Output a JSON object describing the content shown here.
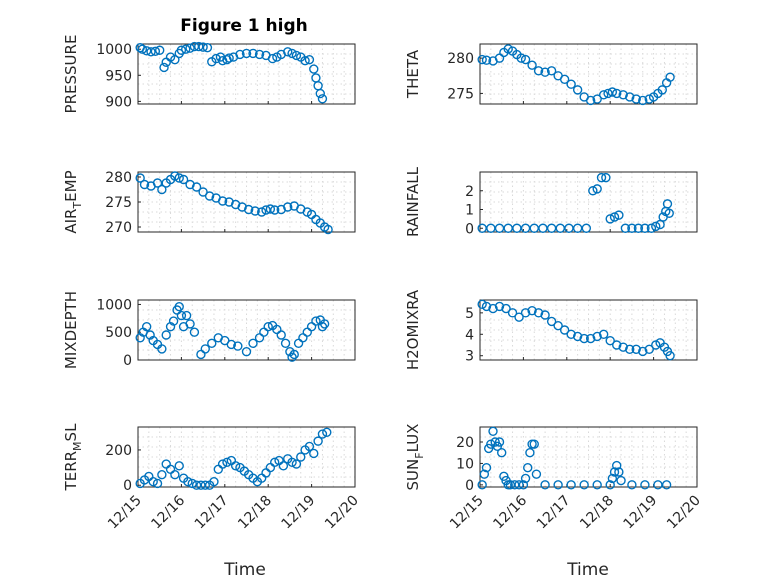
{
  "figure": {
    "title": "Figure 1 high",
    "xlabel": "Time",
    "color": "#0072BD"
  },
  "chart_data": [
    {
      "id": "pressure",
      "type": "scatter",
      "title": "Figure 1 high",
      "ylabel": "PRESSURE",
      "ylabel_sub": "",
      "ylim": [
        895,
        1010
      ],
      "yticks": [
        900,
        950,
        1000
      ],
      "xlim": [
        0,
        5
      ],
      "xticks": [
        "12/15",
        "12/16",
        "12/17",
        "12/18",
        "12/19",
        "12/20"
      ],
      "x": [
        0.05,
        0.1,
        0.2,
        0.3,
        0.4,
        0.5,
        0.6,
        0.65,
        0.75,
        0.85,
        0.95,
        1.0,
        1.1,
        1.2,
        1.3,
        1.4,
        1.5,
        1.6,
        1.7,
        1.8,
        1.9,
        1.95,
        2.05,
        2.1,
        2.2,
        2.35,
        2.5,
        2.65,
        2.8,
        2.95,
        3.1,
        3.2,
        3.3,
        3.45,
        3.55,
        3.65,
        3.75,
        3.85,
        3.95,
        4.05,
        4.1,
        4.15,
        4.2,
        4.25
      ],
      "y": [
        1003,
        1000,
        997,
        995,
        996,
        998,
        965,
        975,
        985,
        980,
        992,
        998,
        1000,
        1002,
        1005,
        1005,
        1004,
        1003,
        976,
        982,
        985,
        978,
        980,
        983,
        985,
        990,
        992,
        992,
        990,
        988,
        982,
        985,
        990,
        995,
        992,
        988,
        985,
        978,
        980,
        962,
        945,
        930,
        915,
        905
      ]
    },
    {
      "id": "theta",
      "type": "scatter",
      "ylabel": "THETA",
      "ylabel_sub": "",
      "ylim": [
        273.5,
        282
      ],
      "yticks": [
        275,
        280
      ],
      "xlim": [
        0,
        5
      ],
      "xticks": [
        "12/15",
        "12/16",
        "12/17",
        "12/18",
        "12/19",
        "12/20"
      ],
      "x": [
        0.05,
        0.15,
        0.3,
        0.45,
        0.55,
        0.65,
        0.75,
        0.85,
        0.95,
        1.05,
        1.2,
        1.35,
        1.5,
        1.65,
        1.8,
        1.95,
        2.1,
        2.25,
        2.4,
        2.55,
        2.7,
        2.85,
        2.95,
        3.05,
        3.15,
        3.3,
        3.45,
        3.6,
        3.75,
        3.9,
        4.0,
        4.1,
        4.2,
        4.3,
        4.38
      ],
      "y": [
        279.8,
        279.7,
        279.6,
        280.0,
        280.8,
        281.3,
        281.0,
        280.5,
        280.0,
        279.8,
        279.0,
        278.2,
        278.0,
        278.2,
        277.5,
        277.0,
        276.3,
        275.5,
        274.5,
        274.0,
        274.2,
        274.8,
        275.0,
        275.2,
        275.0,
        274.8,
        274.5,
        274.2,
        274.0,
        274.2,
        274.5,
        275.0,
        275.5,
        276.5,
        277.3
      ]
    },
    {
      "id": "airtemp",
      "type": "scatter",
      "ylabel": "AIR",
      "ylabel_sub": "T",
      "ylabel_post": "EMP",
      "ylim": [
        269,
        281
      ],
      "yticks": [
        270,
        275,
        280
      ],
      "xlim": [
        0,
        5
      ],
      "xticks": [
        "12/15",
        "12/16",
        "12/17",
        "12/18",
        "12/19",
        "12/20"
      ],
      "x": [
        0.05,
        0.15,
        0.3,
        0.45,
        0.55,
        0.65,
        0.75,
        0.85,
        0.95,
        1.05,
        1.2,
        1.35,
        1.5,
        1.65,
        1.8,
        1.95,
        2.1,
        2.25,
        2.4,
        2.55,
        2.7,
        2.85,
        2.95,
        3.05,
        3.15,
        3.3,
        3.45,
        3.6,
        3.75,
        3.9,
        4.0,
        4.1,
        4.2,
        4.3,
        4.38
      ],
      "y": [
        279.8,
        278.5,
        278.2,
        278.8,
        277.5,
        278.8,
        279.5,
        280.2,
        279.8,
        279.5,
        278.5,
        278.0,
        277.0,
        276.2,
        275.8,
        275.2,
        275.0,
        274.5,
        274.0,
        273.5,
        273.2,
        273.0,
        273.4,
        273.6,
        273.4,
        273.5,
        274.0,
        274.2,
        273.6,
        273.0,
        272.5,
        271.5,
        270.8,
        270.0,
        269.5
      ]
    },
    {
      "id": "rainfall",
      "type": "scatter",
      "ylabel": "RAINFALL",
      "ylabel_sub": "",
      "ylim": [
        -0.2,
        3.0
      ],
      "yticks": [
        0,
        1,
        2
      ],
      "xlim": [
        0,
        5
      ],
      "xticks": [
        "12/15",
        "12/16",
        "12/17",
        "12/18",
        "12/19",
        "12/20"
      ],
      "x": [
        0.05,
        0.25,
        0.45,
        0.65,
        0.85,
        1.05,
        1.25,
        1.45,
        1.65,
        1.85,
        2.05,
        2.25,
        2.45,
        2.6,
        2.7,
        2.8,
        2.9,
        3.0,
        3.1,
        3.2,
        3.35,
        3.5,
        3.65,
        3.8,
        3.95,
        4.05,
        4.15,
        4.22,
        4.28,
        4.32,
        4.36
      ],
      "y": [
        0,
        0,
        0,
        0,
        0,
        0,
        0,
        0,
        0,
        0,
        0,
        0,
        0,
        2.0,
        2.1,
        2.7,
        2.7,
        0.5,
        0.6,
        0.7,
        0,
        0,
        0,
        0,
        0,
        0.1,
        0.2,
        0.6,
        0.9,
        1.3,
        0.8
      ]
    },
    {
      "id": "mixdepth",
      "type": "scatter",
      "ylabel": "MIXDEPTH",
      "ylabel_sub": "",
      "ylim": [
        0,
        1080
      ],
      "yticks": [
        0,
        500,
        1000
      ],
      "xlim": [
        0,
        5
      ],
      "xticks": [
        "12/15",
        "12/16",
        "12/17",
        "12/18",
        "12/19",
        "12/20"
      ],
      "x": [
        0.05,
        0.12,
        0.2,
        0.28,
        0.35,
        0.45,
        0.55,
        0.65,
        0.75,
        0.82,
        0.9,
        0.95,
        1.0,
        1.05,
        1.12,
        1.2,
        1.3,
        1.45,
        1.55,
        1.7,
        1.85,
        2.0,
        2.15,
        2.3,
        2.5,
        2.65,
        2.8,
        2.9,
        3.0,
        3.1,
        3.2,
        3.3,
        3.4,
        3.5,
        3.55,
        3.6,
        3.7,
        3.8,
        3.9,
        4.0,
        4.1,
        4.2,
        4.25,
        4.3
      ],
      "y": [
        400,
        500,
        600,
        450,
        350,
        280,
        200,
        450,
        600,
        700,
        900,
        960,
        800,
        600,
        800,
        650,
        500,
        100,
        200,
        300,
        400,
        350,
        280,
        250,
        150,
        300,
        400,
        500,
        600,
        620,
        550,
        450,
        300,
        150,
        50,
        100,
        300,
        400,
        500,
        600,
        700,
        720,
        600,
        650
      ]
    },
    {
      "id": "h2omixra",
      "type": "scatter",
      "ylabel": "H2OMIXRA",
      "ylabel_sub": "",
      "ylim": [
        2.8,
        5.6
      ],
      "yticks": [
        3,
        4,
        5
      ],
      "xlim": [
        0,
        5
      ],
      "xticks": [
        "12/15",
        "12/16",
        "12/17",
        "12/18",
        "12/19",
        "12/20"
      ],
      "x": [
        0.05,
        0.15,
        0.3,
        0.45,
        0.6,
        0.75,
        0.9,
        1.05,
        1.2,
        1.35,
        1.5,
        1.65,
        1.8,
        1.95,
        2.1,
        2.25,
        2.4,
        2.55,
        2.7,
        2.85,
        3.0,
        3.15,
        3.3,
        3.45,
        3.6,
        3.75,
        3.9,
        4.05,
        4.15,
        4.25,
        4.32,
        4.38
      ],
      "y": [
        5.4,
        5.3,
        5.2,
        5.3,
        5.2,
        5.0,
        4.8,
        5.0,
        5.1,
        5.0,
        4.9,
        4.6,
        4.4,
        4.2,
        4.0,
        3.9,
        3.8,
        3.8,
        3.9,
        4.0,
        3.7,
        3.5,
        3.4,
        3.3,
        3.3,
        3.2,
        3.3,
        3.5,
        3.6,
        3.4,
        3.2,
        3.0
      ]
    },
    {
      "id": "terrmsl",
      "type": "scatter",
      "ylabel": "TERR",
      "ylabel_sub": "M",
      "ylabel_post": "SL",
      "ylim": [
        -10,
        330
      ],
      "yticks": [
        0,
        200
      ],
      "xlim": [
        0,
        5
      ],
      "xticks": [
        "12/15",
        "12/16",
        "12/17",
        "12/18",
        "12/19",
        "12/20"
      ],
      "x": [
        0.05,
        0.15,
        0.25,
        0.35,
        0.45,
        0.55,
        0.65,
        0.75,
        0.85,
        0.95,
        1.05,
        1.15,
        1.25,
        1.35,
        1.45,
        1.55,
        1.65,
        1.75,
        1.85,
        1.95,
        2.05,
        2.15,
        2.25,
        2.35,
        2.45,
        2.55,
        2.65,
        2.75,
        2.85,
        2.95,
        3.05,
        3.15,
        3.25,
        3.35,
        3.45,
        3.55,
        3.65,
        3.75,
        3.85,
        3.95,
        4.05,
        4.15,
        4.25,
        4.35
      ],
      "y": [
        10,
        30,
        50,
        20,
        10,
        60,
        120,
        90,
        60,
        110,
        40,
        20,
        10,
        0,
        0,
        0,
        0,
        20,
        90,
        120,
        130,
        140,
        110,
        100,
        80,
        60,
        40,
        20,
        40,
        70,
        100,
        130,
        140,
        110,
        150,
        130,
        120,
        160,
        200,
        220,
        180,
        250,
        290,
        300
      ]
    },
    {
      "id": "sunflux",
      "type": "scatter",
      "ylabel": "SUN",
      "ylabel_sub": "F",
      "ylabel_post": "LUX",
      "ylim": [
        -1,
        27
      ],
      "yticks": [
        0,
        10,
        20
      ],
      "xlim": [
        0,
        5
      ],
      "xticks": [
        "12/15",
        "12/16",
        "12/17",
        "12/18",
        "12/19",
        "12/20"
      ],
      "x": [
        0.05,
        0.1,
        0.15,
        0.2,
        0.25,
        0.3,
        0.35,
        0.4,
        0.45,
        0.5,
        0.55,
        0.6,
        0.65,
        0.7,
        0.8,
        0.9,
        1.0,
        1.05,
        1.1,
        1.15,
        1.2,
        1.25,
        1.3,
        1.5,
        1.8,
        2.1,
        2.4,
        2.7,
        3.0,
        3.05,
        3.1,
        3.15,
        3.2,
        3.25,
        3.5,
        3.8,
        4.1,
        4.3
      ],
      "y": [
        0,
        5,
        8,
        17,
        19,
        25,
        20,
        18,
        20,
        15,
        4,
        2,
        0,
        0,
        0,
        0,
        0,
        3,
        8,
        15,
        19,
        19,
        5,
        0,
        0,
        0,
        0,
        0,
        0,
        3,
        6,
        9,
        6,
        2,
        0,
        0,
        0,
        0
      ]
    }
  ]
}
